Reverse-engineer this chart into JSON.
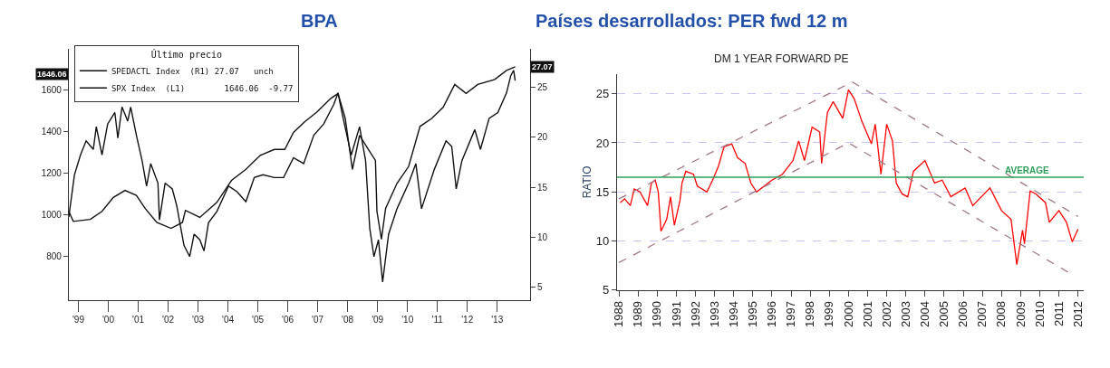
{
  "chart_data": [
    {
      "type": "line",
      "title": "BPA",
      "legend_title": "Último precio",
      "legend": "top left",
      "xlim": [
        1998.68,
        2014.1
      ],
      "xticks": [
        {
          "value": 1999,
          "label": "'99"
        },
        {
          "value": 2000,
          "label": "'00"
        },
        {
          "value": 2001,
          "label": "'01"
        },
        {
          "value": 2002,
          "label": "'02"
        },
        {
          "value": 2003,
          "label": "'03"
        },
        {
          "value": 2004,
          "label": "'04"
        },
        {
          "value": 2005,
          "label": "'05"
        },
        {
          "value": 2006,
          "label": "'06"
        },
        {
          "value": 2007,
          "label": "'07"
        },
        {
          "value": 2008,
          "label": "'08"
        },
        {
          "value": 2009,
          "label": "'09"
        },
        {
          "value": 2010,
          "label": "'10"
        },
        {
          "value": 2011,
          "label": "'11"
        },
        {
          "value": 2012,
          "label": "'12"
        },
        {
          "value": 2013,
          "label": "'13"
        }
      ],
      "ylim": [
        590,
        1800
      ],
      "yticks": [
        800,
        1000,
        1200,
        1400,
        1600
      ],
      "y2lim": [
        3.7,
        28.9
      ],
      "y2ticks": [
        5,
        10,
        15,
        20,
        25
      ],
      "annotations": [
        "1646.06",
        "27.07"
      ],
      "series": [
        {
          "name": "SPEDACTL Index  (R1) 27.07   unch",
          "color": "#111111",
          "axis": "y2",
          "x": [
            1998.68,
            1998.83,
            1999.4,
            1999.79,
            2000.17,
            2000.56,
            2000.94,
            2001.23,
            2001.62,
            2002.1,
            2002.48,
            2002.58,
            2003.06,
            2003.63,
            2004.12,
            2004.6,
            2005.08,
            2005.55,
            2005.9,
            2006.19,
            2006.58,
            2006.96,
            2007.44,
            2007.68,
            2007.92,
            2008.16,
            2008.4,
            2008.69,
            2008.93,
            2008.98,
            2009.13,
            2009.27,
            2009.65,
            2010.04,
            2010.42,
            2010.81,
            2011.19,
            2011.58,
            2011.96,
            2012.35,
            2012.92,
            2013.31,
            2013.6
          ],
          "values": [
            12.6,
            11.6,
            11.8,
            12.6,
            14.0,
            14.7,
            14.2,
            12.9,
            11.5,
            10.9,
            11.5,
            12.7,
            12.0,
            13.5,
            15.7,
            16.8,
            18.2,
            18.8,
            18.8,
            20.5,
            21.6,
            22.5,
            23.9,
            24.4,
            21.9,
            16.8,
            20.2,
            18.8,
            17.7,
            12.6,
            9.8,
            12.9,
            15.4,
            17.1,
            21.1,
            21.9,
            23.0,
            25.3,
            24.4,
            25.3,
            25.8,
            26.7,
            27.07
          ]
        },
        {
          "name": "SPX Index  (L1)        1646.06  -9.77",
          "color": "#111111",
          "x": [
            1998.68,
            1998.87,
            1999.07,
            1999.26,
            1999.5,
            1999.6,
            1999.79,
            1999.98,
            2000.22,
            2000.32,
            2000.46,
            2000.65,
            2000.75,
            2000.94,
            2001.13,
            2001.28,
            2001.42,
            2001.66,
            2001.71,
            2001.9,
            2002.14,
            2002.29,
            2002.53,
            2002.72,
            2002.87,
            2003.06,
            2003.2,
            2003.35,
            2003.63,
            2004.02,
            2004.3,
            2004.6,
            2004.88,
            2005.17,
            2005.55,
            2005.86,
            2006.19,
            2006.53,
            2006.87,
            2007.2,
            2007.54,
            2007.68,
            2007.83,
            2008.12,
            2008.4,
            2008.6,
            2008.74,
            2008.88,
            2009.03,
            2009.17,
            2009.37,
            2009.65,
            2010.04,
            2010.28,
            2010.47,
            2010.9,
            2011.29,
            2011.48,
            2011.63,
            2011.82,
            2012.25,
            2012.44,
            2012.73,
            2013.02,
            2013.31,
            2013.45,
            2013.55,
            2013.6
          ],
          "values": [
            990,
            1193,
            1288,
            1356,
            1315,
            1424,
            1288,
            1437,
            1492,
            1370,
            1519,
            1451,
            1519,
            1383,
            1261,
            1139,
            1247,
            1153,
            976,
            1153,
            1125,
            1044,
            854,
            800,
            908,
            881,
            827,
            963,
            1017,
            1139,
            1112,
            1064,
            1180,
            1193,
            1180,
            1180,
            1275,
            1247,
            1383,
            1437,
            1532,
            1586,
            1478,
            1288,
            1424,
            1261,
            936,
            800,
            881,
            678,
            908,
            1030,
            1153,
            1247,
            1030,
            1220,
            1356,
            1329,
            1125,
            1261,
            1410,
            1315,
            1464,
            1492,
            1586,
            1668,
            1695,
            1646.06
          ]
        }
      ]
    },
    {
      "type": "line",
      "title": "Países desarrollados: PER fwd 12 m",
      "subtitle": "DM 1 YEAR FORWARD PE",
      "ylabel": "RATIO",
      "legend": false,
      "grid": "y",
      "xlim": [
        1987.9,
        2012.3
      ],
      "xticks": [
        1988,
        1989,
        1990,
        1991,
        1992,
        1993,
        1994,
        1995,
        1996,
        1997,
        1998,
        1999,
        2000,
        2001,
        2002,
        2003,
        2004,
        2005,
        2006,
        2007,
        2008,
        2009,
        2010,
        2011,
        2012
      ],
      "ylim": [
        5,
        27
      ],
      "yticks": [
        5,
        10,
        15,
        20,
        25
      ],
      "ref_lines": [
        {
          "axis": "y",
          "value": 16.5,
          "label": "AVERAGE",
          "color": "#2ca05a"
        }
      ],
      "series": [
        {
          "color": "#ff0000",
          "x": [
            1988.07,
            1988.3,
            1988.6,
            1988.8,
            1989.1,
            1989.5,
            1989.7,
            1989.9,
            1990.06,
            1990.2,
            1990.5,
            1990.7,
            1990.9,
            1991.2,
            1991.3,
            1991.5,
            1991.9,
            1992.1,
            1992.6,
            1992.9,
            1993.2,
            1993.5,
            1993.9,
            1994.2,
            1994.6,
            1994.9,
            1995.2,
            1996.0,
            1996.55,
            1997.1,
            1997.4,
            1997.7,
            1998.1,
            1998.5,
            1998.6,
            1998.9,
            1999.2,
            1999.7,
            2000.0,
            2000.3,
            2000.7,
            2001.2,
            2001.4,
            2001.7,
            2002.0,
            2002.3,
            2002.5,
            2002.8,
            2003.1,
            2003.4,
            2004.0,
            2004.5,
            2004.9,
            2005.35,
            2006.1,
            2006.5,
            2007.4,
            2008.0,
            2008.5,
            2008.8,
            2009.1,
            2009.2,
            2009.5,
            2009.8,
            2010.3,
            2010.5,
            2011.0,
            2011.4,
            2011.7,
            2012.0
          ],
          "values": [
            13.9,
            14.3,
            13.6,
            15.3,
            15.0,
            13.6,
            15.9,
            16.2,
            15.0,
            11.0,
            12.2,
            14.5,
            11.6,
            14.2,
            15.9,
            17.1,
            16.8,
            15.6,
            15.0,
            16.2,
            17.6,
            19.6,
            19.9,
            18.5,
            17.9,
            15.9,
            15.0,
            16.2,
            16.8,
            18.2,
            20.2,
            18.2,
            21.6,
            21.1,
            17.9,
            23.1,
            24.2,
            22.5,
            25.4,
            24.5,
            22.2,
            19.9,
            21.9,
            16.8,
            21.9,
            20.2,
            15.9,
            14.8,
            14.5,
            17.1,
            18.2,
            15.9,
            16.2,
            14.5,
            15.4,
            13.6,
            15.4,
            13.1,
            12.2,
            7.6,
            11.1,
            9.7,
            15.1,
            14.8,
            13.9,
            11.9,
            13.1,
            11.9,
            9.9,
            11.2
          ]
        },
        {
          "type": "line",
          "line_style": "dashed",
          "color": "#a07888",
          "x": [
            1988,
            2000.2,
            2012
          ],
          "values": [
            14.3,
            26.2,
            12.5
          ]
        },
        {
          "type": "line",
          "line_style": "dashed",
          "color": "#a07888",
          "x": [
            1988,
            2000,
            2011.5
          ],
          "values": [
            7.8,
            20,
            6.8
          ]
        }
      ]
    }
  ]
}
